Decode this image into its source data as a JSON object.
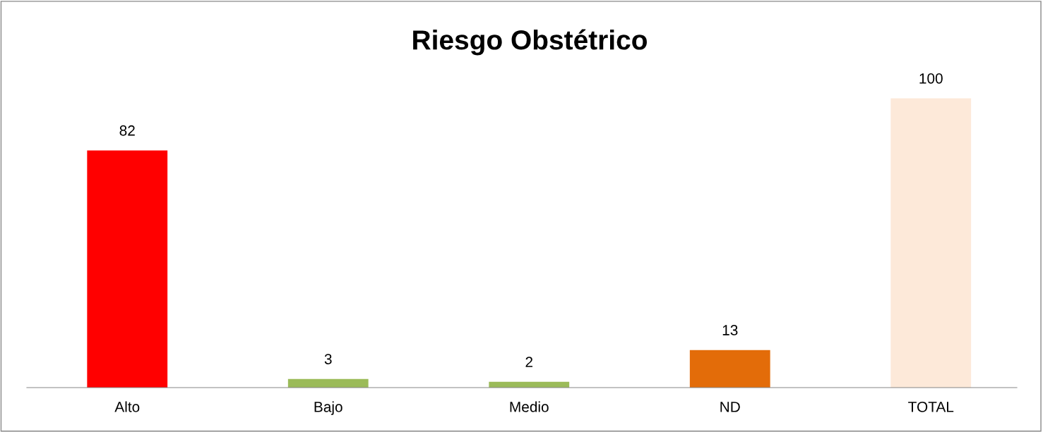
{
  "chart_data": {
    "type": "bar",
    "title": "Riesgo Obstétrico",
    "categories": [
      "Alto",
      "Bajo",
      "Medio",
      "ND",
      "TOTAL"
    ],
    "values": [
      82,
      3,
      2,
      13,
      100
    ],
    "colors": [
      "#ff0000",
      "#9bbb59",
      "#9bbb59",
      "#e36c09",
      "#fde9d9"
    ],
    "data_labels": true,
    "grid": false,
    "legend": false
  }
}
